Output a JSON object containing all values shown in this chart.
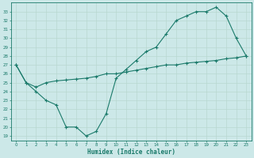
{
  "xlabel": "Humidex (Indice chaleur)",
  "bg_color": "#cce8e8",
  "grid_color": "#b0d0cc",
  "line_color": "#1a7a6a",
  "ylim": [
    18.5,
    34.0
  ],
  "xlim": [
    -0.5,
    23.5
  ],
  "yticks": [
    19,
    20,
    21,
    22,
    23,
    24,
    25,
    26,
    27,
    28,
    29,
    30,
    31,
    32,
    33
  ],
  "xticks": [
    0,
    1,
    2,
    3,
    4,
    5,
    6,
    7,
    8,
    9,
    10,
    11,
    12,
    13,
    14,
    15,
    16,
    17,
    18,
    19,
    20,
    21,
    22,
    23
  ],
  "line1_x": [
    0,
    1,
    2,
    3,
    4,
    5,
    6,
    7,
    8,
    9,
    10,
    11,
    12,
    13,
    14,
    15,
    16,
    17,
    18,
    19,
    20,
    21,
    22,
    23
  ],
  "line1_y": [
    27.0,
    25.0,
    24.0,
    23.0,
    22.5,
    20.0,
    20.0,
    19.0,
    19.5,
    21.5,
    25.5,
    26.5,
    27.5,
    28.5,
    29.0,
    30.5,
    32.0,
    32.5,
    33.0,
    33.0,
    33.5,
    32.5,
    30.0,
    28.0
  ],
  "line2_x": [
    0,
    1,
    2,
    3,
    4,
    5,
    6,
    7,
    8,
    9,
    10,
    11,
    12,
    13,
    14,
    15,
    16,
    17,
    18,
    19,
    20,
    21,
    22,
    23
  ],
  "line2_y": [
    27.0,
    25.0,
    24.5,
    25.0,
    25.2,
    25.3,
    25.4,
    25.5,
    25.7,
    26.0,
    26.0,
    26.2,
    26.4,
    26.6,
    26.8,
    27.0,
    27.0,
    27.2,
    27.3,
    27.4,
    27.5,
    27.7,
    27.8,
    28.0
  ]
}
